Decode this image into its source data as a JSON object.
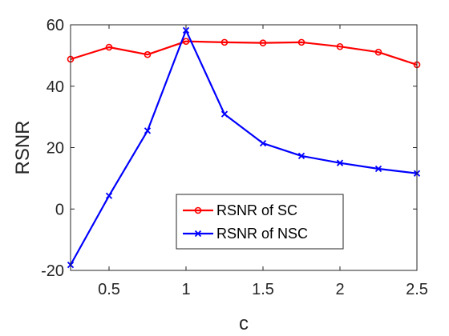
{
  "chart_data": {
    "type": "line",
    "title": "",
    "xlabel": "c",
    "ylabel": "RSNR",
    "xlim": [
      0.25,
      2.5
    ],
    "ylim": [
      -20,
      60
    ],
    "xticks": [
      0.5,
      1,
      1.5,
      2,
      2.5
    ],
    "xtick_labels": [
      "0.5",
      "1",
      "1.5",
      "2",
      "2.5"
    ],
    "yticks": [
      -20,
      0,
      20,
      40,
      60
    ],
    "ytick_labels": [
      "-20",
      "0",
      "20",
      "40",
      "60"
    ],
    "grid": false,
    "legend_position": "lower-center",
    "x": [
      0.25,
      0.5,
      0.75,
      1,
      1.25,
      1.5,
      1.75,
      2,
      2.25,
      2.5
    ],
    "series": [
      {
        "name": "RSNR of SC",
        "color": "#ff0000",
        "marker": "circle",
        "values": [
          48.8,
          52.7,
          50.3,
          54.6,
          54.3,
          54.1,
          54.3,
          52.9,
          51.1,
          47.0
        ]
      },
      {
        "name": "RSNR of NSC",
        "color": "#0000ff",
        "marker": "x",
        "values": [
          -18.2,
          4.3,
          25.5,
          58.2,
          30.9,
          21.4,
          17.3,
          15.0,
          13.1,
          11.6
        ]
      }
    ]
  }
}
